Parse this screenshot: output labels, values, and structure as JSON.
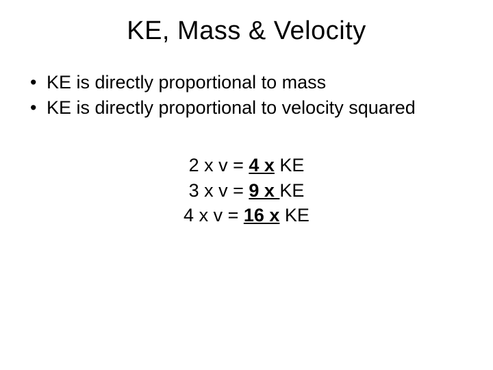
{
  "slide": {
    "title": "KE, Mass & Velocity",
    "bullets": [
      "KE is directly proportional to mass",
      "KE is directly proportional to velocity squared"
    ],
    "equations": [
      {
        "left": "2 x v = ",
        "mult": "4 x",
        "right": " KE"
      },
      {
        "left": "3 x v = ",
        "mult": "9 x ",
        "right": "KE"
      },
      {
        "left": "4 x v = ",
        "mult": "16 x",
        "right": " KE"
      }
    ],
    "colors": {
      "background": "#ffffff",
      "text": "#000000"
    },
    "fonts": {
      "family": "Arial",
      "title_size": 38,
      "body_size": 27
    }
  }
}
